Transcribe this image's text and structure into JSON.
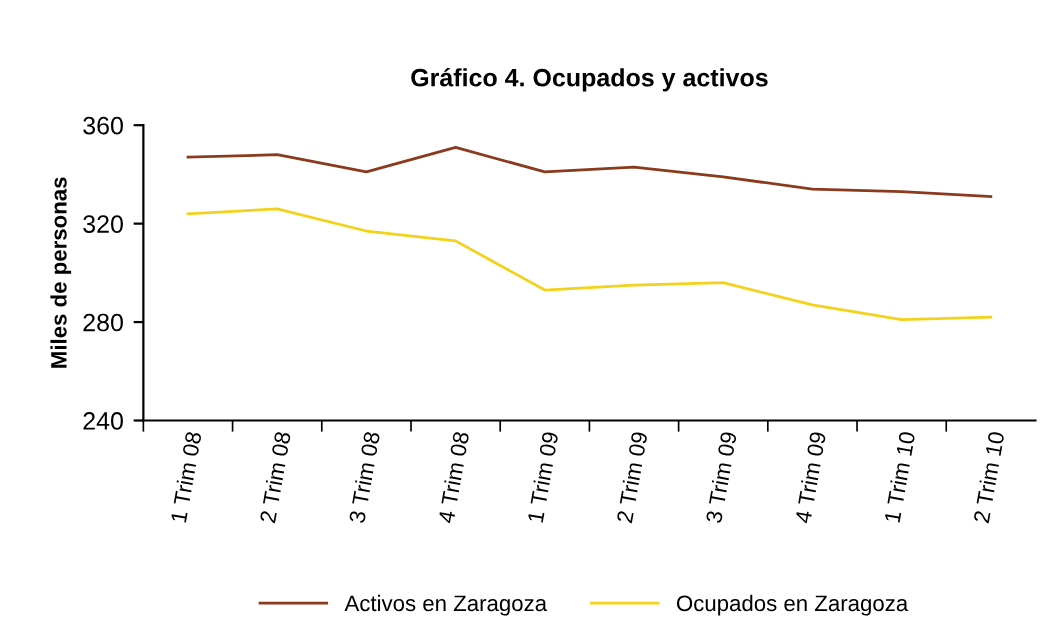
{
  "chart_data": {
    "type": "line",
    "title": "Gráfico 4. Ocupados y activos",
    "ylabel": "Miles de personas",
    "categories": [
      "1 Trim 08",
      "2 Trim 08",
      "3 Trim 08",
      "4 Trim 08",
      "1 Trim 09",
      "2 Trim 09",
      "3 Trim 09",
      "4 Trim 09",
      "1 Trim 10",
      "2 Trim 10"
    ],
    "series": [
      {
        "name": "Activos en Zaragoza",
        "color": "#8b3a1e",
        "values": [
          347,
          348,
          341,
          351,
          341,
          343,
          339,
          334,
          333,
          331
        ]
      },
      {
        "name": "Ocupados en Zaragoza",
        "color": "#f2d21b",
        "values": [
          324,
          326,
          317,
          313,
          293,
          295,
          296,
          287,
          281,
          282
        ]
      }
    ],
    "ylim": [
      240,
      360
    ],
    "yticks": [
      240,
      280,
      320,
      360
    ],
    "grid": false,
    "legend": "bottom",
    "marker": "none",
    "line_style": "solid"
  }
}
